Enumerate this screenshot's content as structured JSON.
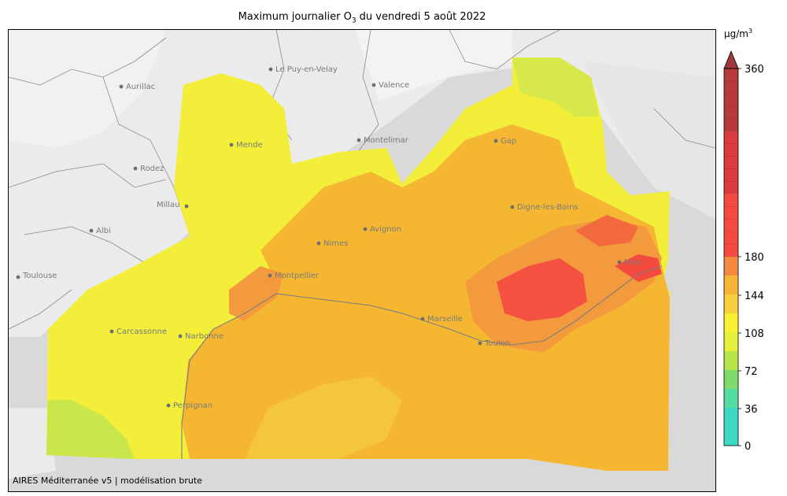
{
  "title": {
    "prefix": "Maximum journalier O",
    "subscript": "3",
    "suffix": " du vendredi 5 août 2022"
  },
  "credit": "AIRES Méditerranée v5 | modélisation brute",
  "colorbar": {
    "unit_prefix": "µg/m",
    "unit_sup": "3",
    "min": 0,
    "max": 360,
    "extend": "max",
    "ticks": [
      {
        "value": 0,
        "label": "0"
      },
      {
        "value": 36,
        "label": "36"
      },
      {
        "value": 72,
        "label": "72"
      },
      {
        "value": 108,
        "label": "108"
      },
      {
        "value": 144,
        "label": "144"
      },
      {
        "value": 180,
        "label": "180"
      },
      {
        "value": 360,
        "label": "360"
      }
    ],
    "color_steps": [
      {
        "from": 0,
        "to": 36,
        "color": "#3fd9c3"
      },
      {
        "from": 36,
        "to": 54,
        "color": "#56dba0"
      },
      {
        "from": 54,
        "to": 72,
        "color": "#7fd96b"
      },
      {
        "from": 72,
        "to": 90,
        "color": "#b6e34a"
      },
      {
        "from": 90,
        "to": 108,
        "color": "#e4f03a"
      },
      {
        "from": 108,
        "to": 126,
        "color": "#f9ef33"
      },
      {
        "from": 126,
        "to": 144,
        "color": "#f7cf3a"
      },
      {
        "from": 144,
        "to": 162,
        "color": "#f6b536"
      },
      {
        "from": 162,
        "to": 180,
        "color": "#f38a3f"
      },
      {
        "from": 180,
        "to": 240,
        "color": "#f44a40"
      },
      {
        "from": 240,
        "to": 300,
        "color": "#d93c3c"
      },
      {
        "from": 300,
        "to": 360,
        "color": "#b53a3a"
      }
    ],
    "extend_color": "#9b3a3a"
  },
  "cities": [
    {
      "name": "Aurillac"
    },
    {
      "name": "Le Puy-en-Velay"
    },
    {
      "name": "Valence"
    },
    {
      "name": "Mende"
    },
    {
      "name": "Rodez"
    },
    {
      "name": "Montelimar"
    },
    {
      "name": "Gap"
    },
    {
      "name": "Millau"
    },
    {
      "name": "Digne-les-Bains"
    },
    {
      "name": "Albi"
    },
    {
      "name": "Avignon"
    },
    {
      "name": "Nimes"
    },
    {
      "name": "Nice"
    },
    {
      "name": "Montpellier"
    },
    {
      "name": "Toulouse"
    },
    {
      "name": "Marseille"
    },
    {
      "name": "Carcassonne"
    },
    {
      "name": "Narbonne"
    },
    {
      "name": "Toulon"
    },
    {
      "name": "Perpignan"
    }
  ],
  "map_colors": {
    "background": "#d9d9d9",
    "relief": "#ececec",
    "borders": "#7d7d7d",
    "zone_yellow": "#f2ee3a",
    "zone_orange": "#f5b731",
    "zone_dark_orange": "#f4a236",
    "zone_red": "#f04444",
    "zone_green": "#c9e64a"
  }
}
